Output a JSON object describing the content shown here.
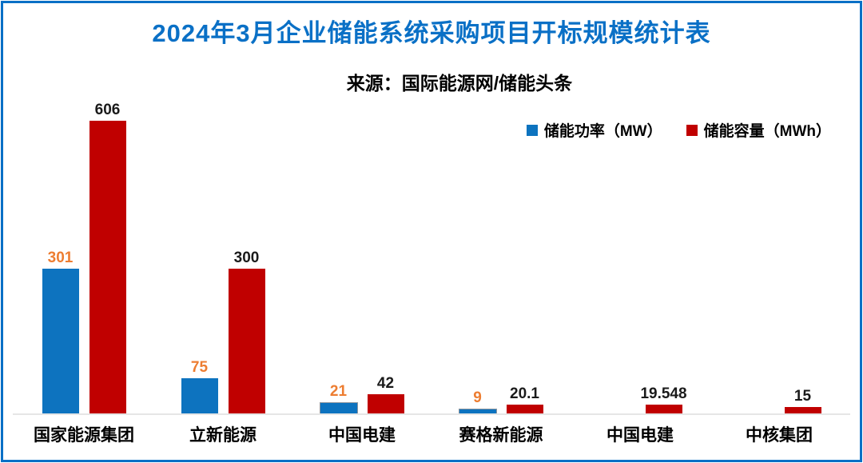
{
  "colors": {
    "border": "#0A70C6",
    "title": "#0A70C6",
    "baseline": "#E6E6E6",
    "power_bar": "#0D73BF",
    "capacity_bar": "#C00000",
    "power_label": "#ED7D31",
    "capacity_label": "#1A1A1A",
    "small_bar_outline": "#8C959E"
  },
  "chart_data": {
    "type": "bar",
    "title": "2024年3月企业储能系统采购项目开标规模统计表",
    "source": "来源：国际能源网/储能头条",
    "categories": [
      "国家能源集团",
      "立新能源",
      "中国电建",
      "赛格新能源",
      "中国电建",
      "中核集团"
    ],
    "series": [
      {
        "name": "储能功率（MW）",
        "color": "#0D73BF",
        "label_color": "#ED7D31",
        "values": [
          301,
          75,
          21,
          9,
          null,
          null
        ],
        "labels": [
          "301",
          "75",
          "21",
          "9",
          "",
          ""
        ]
      },
      {
        "name": "储能容量（MWh）",
        "color": "#C00000",
        "label_color": "#1A1A1A",
        "values": [
          606,
          300,
          42,
          20.1,
          19.548,
          15
        ],
        "labels": [
          "606",
          "300",
          "42",
          "20.1",
          "19.548",
          "15"
        ]
      }
    ],
    "ylim": [
      0,
      620
    ],
    "grid": "off",
    "y_axis_shown": false,
    "legend_position": "top-right",
    "data_labels": "above-bars"
  }
}
